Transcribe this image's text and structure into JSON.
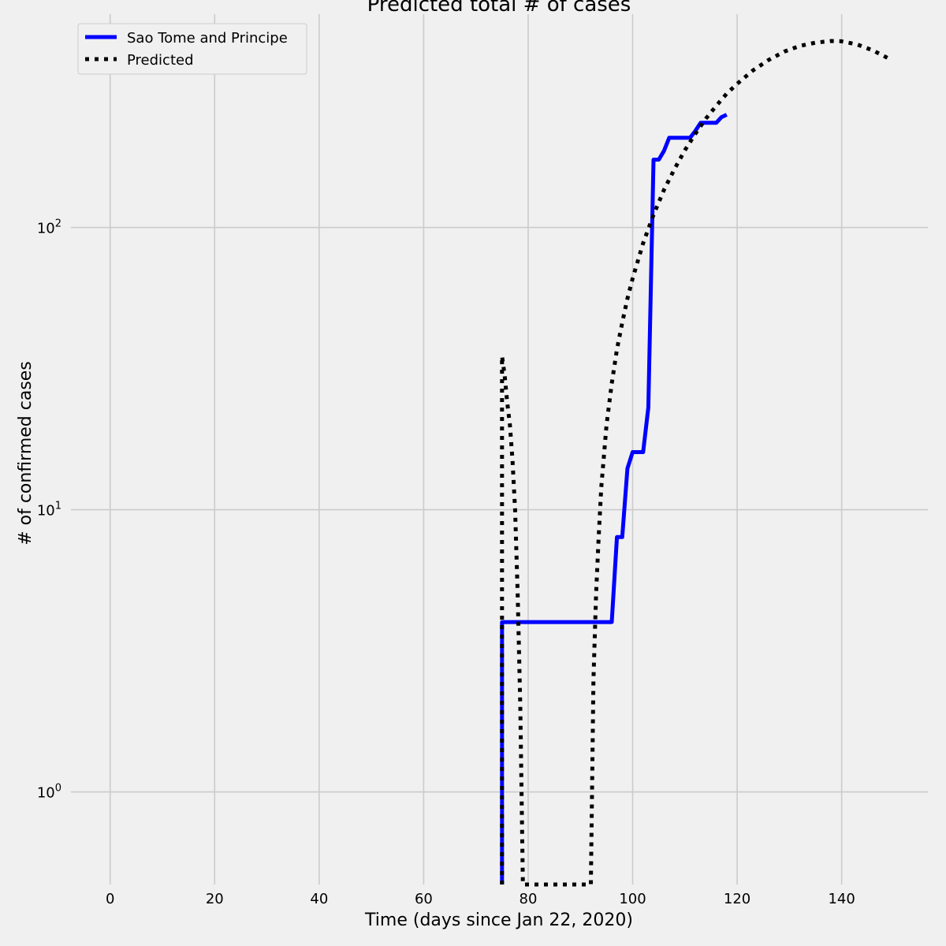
{
  "chart_data": {
    "type": "line",
    "title": "Predicted total # of cases",
    "xlabel": "Time (days since Jan 22, 2020)",
    "ylabel": "# of confirmed cases",
    "yscale": "log",
    "xlim": [
      -7.5,
      156.5
    ],
    "ylim": [
      0.47,
      570
    ],
    "x_ticks": [
      0,
      20,
      40,
      60,
      80,
      100,
      120,
      140
    ],
    "y_ticks": [
      {
        "value": 1,
        "base": "10",
        "exp": "0"
      },
      {
        "value": 10,
        "base": "10",
        "exp": "1"
      },
      {
        "value": 100,
        "base": "10",
        "exp": "2"
      }
    ],
    "grid": true,
    "legend_position": "top-left",
    "series": [
      {
        "name": "Sao Tome and Principe",
        "color": "#0000ff",
        "style": "solid",
        "points": [
          [
            75,
            0.47
          ],
          [
            75,
            4
          ],
          [
            76,
            4
          ],
          [
            96,
            4
          ],
          [
            97,
            8
          ],
          [
            98,
            8
          ],
          [
            99,
            14
          ],
          [
            100,
            16
          ],
          [
            101,
            16
          ],
          [
            102,
            16
          ],
          [
            103,
            23
          ],
          [
            104,
            174
          ],
          [
            105,
            174
          ],
          [
            106,
            187
          ],
          [
            107,
            208
          ],
          [
            108,
            208
          ],
          [
            111,
            208
          ],
          [
            112,
            220
          ],
          [
            113,
            235
          ],
          [
            116,
            235
          ],
          [
            117,
            246
          ],
          [
            118,
            251
          ]
        ]
      },
      {
        "name": "Predicted",
        "color": "#000000",
        "style": "dotted",
        "points": [
          [
            75,
            0.47
          ],
          [
            75,
            2
          ],
          [
            75,
            10
          ],
          [
            75,
            35
          ],
          [
            75.5,
            30
          ],
          [
            76,
            24
          ],
          [
            76.5,
            20
          ],
          [
            77,
            15
          ],
          [
            77.5,
            10
          ],
          [
            78,
            5
          ],
          [
            78.5,
            2
          ],
          [
            79,
            0.47
          ],
          [
            92,
            0.47
          ],
          [
            92.5,
            2.5
          ],
          [
            93,
            5
          ],
          [
            93.5,
            8
          ],
          [
            94,
            12
          ],
          [
            95,
            20
          ],
          [
            96,
            28
          ],
          [
            97,
            37
          ],
          [
            98,
            46
          ],
          [
            99,
            56
          ],
          [
            100,
            66
          ],
          [
            102,
            88
          ],
          [
            104,
            111
          ],
          [
            106,
            136
          ],
          [
            108,
            161
          ],
          [
            110,
            188
          ],
          [
            112,
            215
          ],
          [
            114,
            243
          ],
          [
            116,
            270
          ],
          [
            118,
            298
          ],
          [
            120,
            323
          ],
          [
            123,
            360
          ],
          [
            126,
            392
          ],
          [
            129,
            420
          ],
          [
            132,
            440
          ],
          [
            135,
            452
          ],
          [
            138,
            458
          ],
          [
            140,
            457
          ],
          [
            143,
            445
          ],
          [
            146,
            424
          ],
          [
            149,
            397
          ]
        ]
      }
    ]
  }
}
